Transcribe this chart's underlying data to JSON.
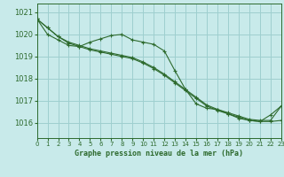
{
  "title": "Graphe pression niveau de la mer (hPa)",
  "bg_color": "#c8eaea",
  "grid_color": "#9ecfcf",
  "line_color": "#2d6a2d",
  "xlim": [
    0,
    23
  ],
  "ylim": [
    1015.3,
    1021.4
  ],
  "yticks": [
    1016,
    1017,
    1018,
    1019,
    1020,
    1021
  ],
  "xticks": [
    0,
    1,
    2,
    3,
    4,
    5,
    6,
    7,
    8,
    9,
    10,
    11,
    12,
    13,
    14,
    15,
    16,
    17,
    18,
    19,
    20,
    21,
    22,
    23
  ],
  "line1": {
    "x": [
      0,
      1,
      2,
      3,
      4,
      5,
      6,
      7,
      8,
      9,
      10,
      11,
      12,
      13,
      14,
      15,
      16,
      17,
      18,
      19,
      20,
      21,
      22,
      23
    ],
    "y": [
      1020.7,
      1020.3,
      1019.9,
      1019.6,
      1019.45,
      1019.3,
      1019.2,
      1019.1,
      1019.0,
      1018.9,
      1018.7,
      1018.45,
      1018.15,
      1017.8,
      1017.45,
      1017.1,
      1016.75,
      1016.55,
      1016.4,
      1016.25,
      1016.1,
      1016.05,
      1016.05,
      1016.1
    ]
  },
  "line2": {
    "x": [
      0,
      1,
      2,
      3,
      4,
      5,
      6,
      7,
      8,
      9,
      10,
      11,
      12,
      13,
      14,
      15,
      16,
      17,
      18,
      19,
      20,
      21,
      22,
      23
    ],
    "y": [
      1020.7,
      1020.0,
      1019.75,
      1019.5,
      1019.45,
      1019.65,
      1019.8,
      1019.95,
      1020.0,
      1019.75,
      1019.65,
      1019.55,
      1019.25,
      1018.35,
      1017.5,
      1016.85,
      1016.65,
      1016.6,
      1016.4,
      1016.2,
      1016.1,
      1016.05,
      1016.35,
      1016.75
    ]
  },
  "line3": {
    "x": [
      0,
      1,
      2,
      3,
      4,
      5,
      6,
      7,
      8,
      9,
      10,
      11,
      12,
      13,
      14,
      15,
      16,
      17,
      18,
      19,
      20,
      21,
      22,
      23
    ],
    "y": [
      1020.7,
      1020.3,
      1019.9,
      1019.65,
      1019.5,
      1019.35,
      1019.25,
      1019.15,
      1019.05,
      1018.95,
      1018.75,
      1018.5,
      1018.2,
      1017.85,
      1017.5,
      1017.15,
      1016.8,
      1016.6,
      1016.45,
      1016.3,
      1016.15,
      1016.1,
      1016.1,
      1016.75
    ]
  }
}
